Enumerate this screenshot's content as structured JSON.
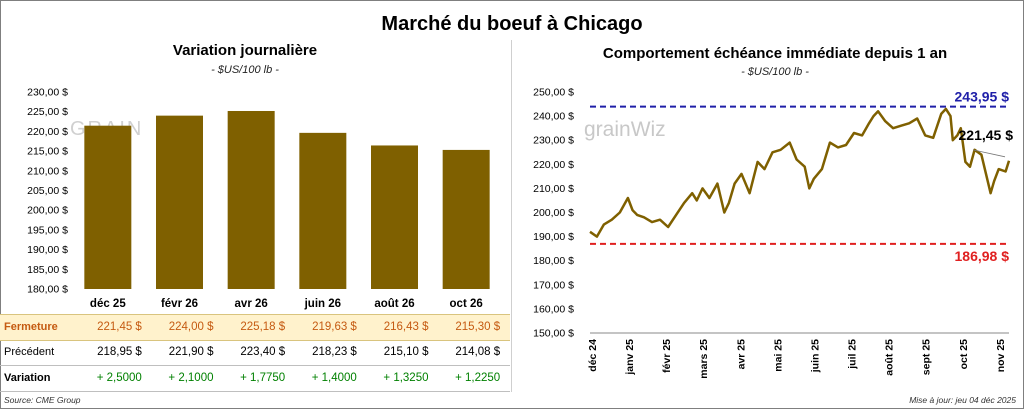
{
  "title": "Marché du boeuf à Chicago",
  "left": {
    "title": "Variation journalière",
    "subtitle": "- $US/100 lb -",
    "watermark": "GRAIN",
    "rows": {
      "fermeture": "Fermeture",
      "precedent": "Précédent",
      "variation": "Variation"
    },
    "fermeture_values": [
      "221,45  $",
      "224,00  $",
      "225,18  $",
      "219,63  $",
      "216,43  $",
      "215,30  $"
    ],
    "precedent_values": [
      "218,95  $",
      "221,90  $",
      "223,40  $",
      "218,23  $",
      "215,10  $",
      "214,08  $"
    ],
    "variation_values": [
      "+ 2,5000",
      "+ 2,1000",
      "+ 1,7750",
      "+ 1,4000",
      "+ 1,3250",
      "+ 1,2250"
    ]
  },
  "right": {
    "title": "Comportement  échéance immédiate depuis 1 an",
    "subtitle": "- $US/100 lb -",
    "watermark": "grainWiz"
  },
  "footer": {
    "source": "Source: CME Group",
    "updated": "Mise à jour: jeu 04 déc 2025"
  },
  "colors": {
    "bar": "#7f6000",
    "line": "#7f6000",
    "high": "#1f1fa8",
    "low": "#e02020",
    "positive": "#008000",
    "fermeture_bg": "#fff2cc"
  },
  "chart_data": [
    {
      "type": "bar",
      "title": "Variation journalière",
      "subtitle": "- $US/100 lb -",
      "categories": [
        "déc 25",
        "févr 26",
        "avr 26",
        "juin 26",
        "août 26",
        "oct 26"
      ],
      "values": [
        221.45,
        224.0,
        225.18,
        219.63,
        216.43,
        215.3
      ],
      "ylim": [
        180,
        230
      ],
      "yticks": [
        180,
        185,
        190,
        195,
        200,
        205,
        210,
        215,
        220,
        225,
        230
      ],
      "ytick_labels": [
        "180,00 $",
        "185,00 $",
        "190,00 $",
        "195,00 $",
        "200,00 $",
        "205,00 $",
        "210,00 $",
        "215,00 $",
        "220,00 $",
        "225,00 $",
        "230,00 $"
      ],
      "grid": false
    },
    {
      "type": "line",
      "title": "Comportement  échéance immédiate depuis 1 an",
      "subtitle": "- $US/100 lb -",
      "x_labels": [
        "déc 24",
        "janv 25",
        "févr 25",
        "mars 25",
        "avr 25",
        "mai 25",
        "juin 25",
        "juil 25",
        "août 25",
        "sept 25",
        "oct 25",
        "nov 25"
      ],
      "x_start": "2024-12-04",
      "x": [
        "2024-12-04",
        "2024-12-10",
        "2024-12-16",
        "2024-12-23",
        "2024-12-30",
        "2025-01-06",
        "2025-01-10",
        "2025-01-14",
        "2025-01-20",
        "2025-01-27",
        "2025-02-03",
        "2025-02-10",
        "2025-02-17",
        "2025-02-24",
        "2025-03-03",
        "2025-03-07",
        "2025-03-12",
        "2025-03-18",
        "2025-03-25",
        "2025-03-31",
        "2025-04-04",
        "2025-04-09",
        "2025-04-15",
        "2025-04-22",
        "2025-04-29",
        "2025-05-05",
        "2025-05-12",
        "2025-05-19",
        "2025-05-27",
        "2025-06-02",
        "2025-06-09",
        "2025-06-13",
        "2025-06-17",
        "2025-06-24",
        "2025-07-01",
        "2025-07-08",
        "2025-07-15",
        "2025-07-22",
        "2025-07-29",
        "2025-08-04",
        "2025-08-08",
        "2025-08-12",
        "2025-08-18",
        "2025-08-25",
        "2025-09-01",
        "2025-09-08",
        "2025-09-15",
        "2025-09-22",
        "2025-09-29",
        "2025-10-06",
        "2025-10-10",
        "2025-10-14",
        "2025-10-16",
        "2025-10-20",
        "2025-10-23",
        "2025-10-27",
        "2025-10-31",
        "2025-11-04",
        "2025-11-10",
        "2025-11-14",
        "2025-11-18",
        "2025-11-21",
        "2025-11-25",
        "2025-12-01",
        "2025-12-04"
      ],
      "values": [
        192,
        190,
        195,
        197,
        200,
        206,
        201,
        199,
        198,
        196,
        197,
        194,
        199,
        204,
        208,
        205,
        210,
        206,
        212,
        200,
        204,
        212,
        216,
        208,
        221,
        218,
        225,
        226,
        229,
        222,
        219,
        210,
        214,
        218,
        229,
        227,
        228,
        233,
        232,
        237,
        240,
        242,
        238,
        235,
        236,
        237,
        239,
        232,
        231,
        241,
        243,
        240,
        230,
        232,
        235,
        221,
        219,
        226,
        224,
        216,
        208,
        213,
        218,
        217,
        221.45
      ],
      "ylim": [
        150,
        250
      ],
      "yticks": [
        150,
        160,
        170,
        180,
        190,
        200,
        210,
        220,
        230,
        240,
        250
      ],
      "ytick_labels": [
        "150,00 $",
        "160,00 $",
        "170,00 $",
        "180,00 $",
        "190,00 $",
        "200,00 $",
        "210,00 $",
        "220,00 $",
        "230,00 $",
        "240,00 $",
        "250,00 $"
      ],
      "high": 243.95,
      "high_label": "243,95 $",
      "low": 186.98,
      "low_label": "186,98 $",
      "last_label": "221,45 $"
    }
  ]
}
